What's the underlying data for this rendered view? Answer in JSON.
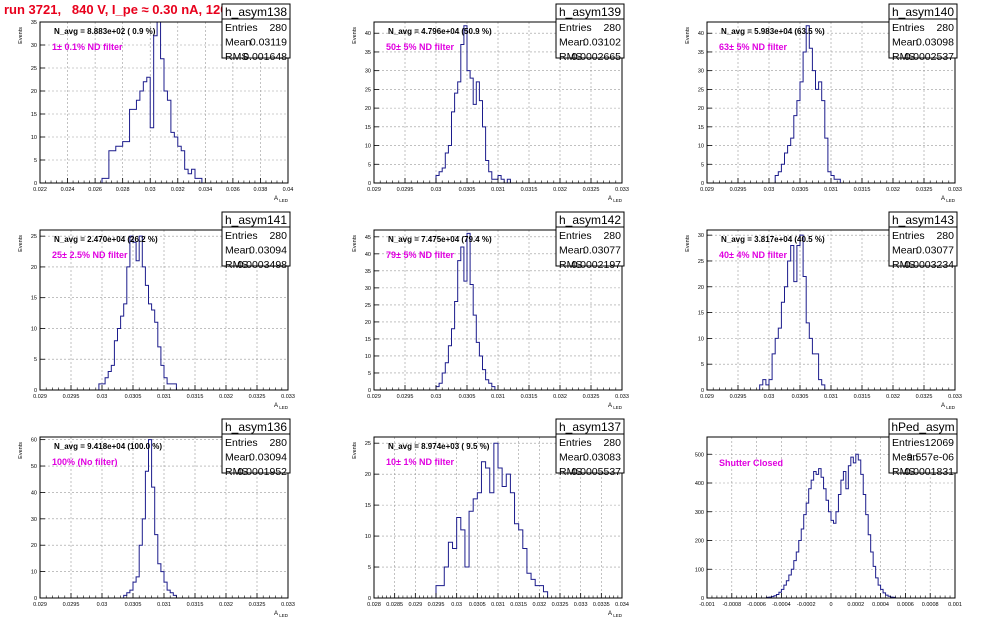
{
  "header": {
    "run_title": "run 3721,   840 V, I_pe ≈ 0.30 nA, 120 Hz"
  },
  "colors": {
    "histogram_line": "#1c1c8c",
    "annotation": "#e000e0",
    "run_title": "#e8001c",
    "grid": "#9a9a9a"
  },
  "stats_labels": {
    "entries": "Entries",
    "mean": "Mean",
    "rms": "RMS"
  },
  "chart_data": [
    {
      "type": "histogram",
      "name": "h_asym138",
      "ylabel": "Events",
      "xlabel": "A_LED",
      "navg": "N_avg = 8.883e+02 ( 0.9 %)",
      "filter": "1± 0.1% ND filter",
      "entries": "280",
      "mean": "0.03119",
      "rms": "0.001648",
      "xlim": [
        0.022,
        0.04
      ],
      "ylim": [
        0,
        35
      ],
      "grid": true,
      "xticks": [
        0.022,
        0.024,
        0.026,
        0.028,
        0.03,
        0.032,
        0.034,
        0.036,
        0.038,
        0.04
      ],
      "xtick_labels": [
        "0.022",
        "0.024",
        "0.026",
        "0.028",
        "0.03",
        "0.032",
        "0.034",
        "0.036",
        "0.038",
        "0.04"
      ],
      "yticks": [
        0,
        5,
        10,
        15,
        20,
        25,
        30,
        35
      ],
      "bin_start": 0.0265,
      "bin_width": 0.00025,
      "counts": [
        1,
        1,
        7,
        7,
        8,
        8,
        9,
        9,
        16,
        16,
        18,
        20,
        22,
        23,
        12,
        32,
        35,
        27,
        20,
        18,
        11,
        10,
        8,
        7,
        3,
        2,
        3,
        1,
        1
      ]
    },
    {
      "type": "histogram",
      "name": "h_asym139",
      "ylabel": "Events",
      "xlabel": "A_LED",
      "navg": "N_avg = 4.796e+04 (50.9 %)",
      "filter": "50± 5% ND filter",
      "entries": "280",
      "mean": "0.03102",
      "rms": "0.0002665",
      "xlim": [
        0.029,
        0.033
      ],
      "ylim": [
        0,
        43
      ],
      "grid": true,
      "xticks": [
        0.029,
        0.0295,
        0.03,
        0.0305,
        0.031,
        0.0315,
        0.032,
        0.0325,
        0.033
      ],
      "xtick_labels": [
        "0.029",
        "0.0295",
        "0.03",
        "0.0305",
        "0.031",
        "0.0315",
        "0.032",
        "0.0325",
        "0.033"
      ],
      "yticks": [
        0,
        5,
        10,
        15,
        20,
        25,
        30,
        35,
        40
      ],
      "bin_start": 0.03,
      "bin_width": 5e-05,
      "counts": [
        2,
        3,
        4,
        8,
        10,
        19,
        24,
        27,
        37,
        42,
        30,
        28,
        21,
        27,
        22,
        15,
        6,
        3,
        1,
        1,
        2,
        1,
        0,
        1
      ]
    },
    {
      "type": "histogram",
      "name": "h_asym140",
      "ylabel": "Events",
      "xlabel": "A_LED",
      "navg": "N_avg = 5.983e+04 (63.5 %)",
      "filter": "63± 5% ND filter",
      "entries": "280",
      "mean": "0.03098",
      "rms": "0.0002537",
      "xlim": [
        0.029,
        0.033
      ],
      "ylim": [
        0,
        43
      ],
      "grid": true,
      "xticks": [
        0.029,
        0.0295,
        0.03,
        0.0305,
        0.031,
        0.0315,
        0.032,
        0.0325,
        0.033
      ],
      "xtick_labels": [
        "0.029",
        "0.0295",
        "0.03",
        "0.0305",
        "0.031",
        "0.0315",
        "0.032",
        "0.0325",
        "0.033"
      ],
      "yticks": [
        0,
        5,
        10,
        15,
        20,
        25,
        30,
        35,
        40
      ],
      "bin_start": 0.0301,
      "bin_width": 5e-05,
      "counts": [
        2,
        3,
        5,
        8,
        10,
        12,
        18,
        22,
        27,
        35,
        42,
        36,
        30,
        25,
        27,
        22,
        12,
        3,
        2,
        1,
        1
      ]
    },
    {
      "type": "histogram",
      "name": "h_asym141",
      "ylabel": "Events",
      "xlabel": "A_LED",
      "navg": "N_avg = 2.470e+04 (26.2 %)",
      "filter": "25± 2.5% ND filter",
      "entries": "280",
      "mean": "0.03094",
      "rms": "0.0003498",
      "xlim": [
        0.029,
        0.033
      ],
      "ylim": [
        0,
        26
      ],
      "grid": true,
      "xticks": [
        0.029,
        0.0295,
        0.03,
        0.0305,
        0.031,
        0.0315,
        0.032,
        0.0325,
        0.033
      ],
      "xtick_labels": [
        "0.029",
        "0.0295",
        "0.03",
        "0.0305",
        "0.031",
        "0.0315",
        "0.032",
        "0.0325",
        "0.033"
      ],
      "yticks": [
        0,
        5,
        10,
        15,
        20,
        25
      ],
      "bin_start": 0.02995,
      "bin_width": 5e-05,
      "counts": [
        1,
        1,
        2,
        3,
        4,
        8,
        10,
        12,
        14,
        20,
        25,
        24,
        21,
        25,
        20,
        17,
        14,
        13,
        11,
        7,
        4,
        2,
        1,
        1,
        1
      ]
    },
    {
      "type": "histogram",
      "name": "h_asym142",
      "ylabel": "Events",
      "xlabel": "A_LED",
      "navg": "N_avg = 7.475e+04 (79.4 %)",
      "filter": "79± 5% ND filter",
      "entries": "280",
      "mean": "0.03077",
      "rms": "0.0002197",
      "xlim": [
        0.029,
        0.033
      ],
      "ylim": [
        0,
        47
      ],
      "grid": true,
      "xticks": [
        0.029,
        0.0295,
        0.03,
        0.0305,
        0.031,
        0.0315,
        0.032,
        0.0325,
        0.033
      ],
      "xtick_labels": [
        "0.029",
        "0.0295",
        "0.03",
        "0.0305",
        "0.031",
        "0.0315",
        "0.032",
        "0.0325",
        "0.033"
      ],
      "yticks": [
        0,
        5,
        10,
        15,
        20,
        25,
        30,
        35,
        40,
        45
      ],
      "bin_start": 0.03,
      "bin_width": 5e-05,
      "counts": [
        1,
        2,
        5,
        8,
        13,
        18,
        26,
        38,
        42,
        32,
        46,
        31,
        22,
        14,
        10,
        6,
        3,
        2,
        1
      ]
    },
    {
      "type": "histogram",
      "name": "h_asym143",
      "ylabel": "Events",
      "xlabel": "A_LED",
      "navg": "N_avg = 3.817e+04 (40.5 %)",
      "filter": "40± 4% ND filter",
      "entries": "280",
      "mean": "0.03077",
      "rms": "0.0003234",
      "xlim": [
        0.029,
        0.033
      ],
      "ylim": [
        0,
        31
      ],
      "grid": true,
      "xticks": [
        0.029,
        0.0295,
        0.03,
        0.0305,
        0.031,
        0.0315,
        0.032,
        0.0325,
        0.033
      ],
      "xtick_labels": [
        "0.029",
        "0.0295",
        "0.03",
        "0.0305",
        "0.031",
        "0.0315",
        "0.032",
        "0.0325",
        "0.033"
      ],
      "yticks": [
        0,
        5,
        10,
        15,
        20,
        25,
        30
      ],
      "bin_start": 0.02985,
      "bin_width": 5e-05,
      "counts": [
        1,
        2,
        1,
        2,
        7,
        10,
        12,
        17,
        20,
        25,
        28,
        21,
        28,
        30,
        22,
        13,
        10,
        7,
        7,
        2,
        1
      ]
    },
    {
      "type": "histogram",
      "name": "h_asym136",
      "ylabel": "Events",
      "xlabel": "A_LED",
      "navg": "N_avg = 9.418e+04 (100.0 %)",
      "filter": "100% (No filter)",
      "entries": "280",
      "mean": "0.03094",
      "rms": "0.0001952",
      "xlim": [
        0.029,
        0.033
      ],
      "ylim": [
        0,
        61
      ],
      "grid": true,
      "xticks": [
        0.029,
        0.0295,
        0.03,
        0.0305,
        0.031,
        0.0315,
        0.032,
        0.0325,
        0.033
      ],
      "xtick_labels": [
        "0.029",
        "0.0295",
        "0.03",
        "0.0305",
        "0.031",
        "0.0315",
        "0.032",
        "0.0325",
        "0.033"
      ],
      "yticks": [
        0,
        10,
        20,
        30,
        40,
        50,
        60
      ],
      "bin_start": 0.03035,
      "bin_width": 5e-05,
      "counts": [
        1,
        2,
        3,
        6,
        8,
        20,
        30,
        48,
        60,
        42,
        24,
        13,
        10,
        6,
        3,
        2,
        1
      ]
    },
    {
      "type": "histogram",
      "name": "h_asym137",
      "ylabel": "Events",
      "xlabel": "A_LED",
      "navg": "N_avg = 8.974e+03 ( 9.5 %)",
      "filter": "10± 1% ND filter",
      "entries": "280",
      "mean": "0.03083",
      "rms": "0.0005537",
      "xlim": [
        0.028,
        0.034
      ],
      "ylim": [
        0,
        26
      ],
      "grid": true,
      "xticks": [
        0.028,
        0.0285,
        0.029,
        0.0295,
        0.03,
        0.0305,
        0.031,
        0.0315,
        0.032,
        0.0325,
        0.033,
        0.0335,
        0.034
      ],
      "xtick_labels": [
        "0.028",
        "0.0285",
        "0.029",
        "0.0295",
        "0.03",
        "0.0305",
        "0.031",
        "0.0315",
        "0.032",
        "0.0325",
        "0.033",
        "0.0335",
        "0.034"
      ],
      "yticks": [
        0,
        5,
        10,
        15,
        20,
        25
      ],
      "bin_start": 0.0295,
      "bin_width": 0.0001,
      "counts": [
        2,
        2,
        5,
        9,
        8,
        13,
        11,
        5,
        14,
        16,
        17,
        22,
        21,
        17,
        25,
        21,
        18,
        20,
        17,
        12,
        11,
        8,
        4,
        3,
        2,
        2,
        1
      ]
    },
    {
      "type": "histogram",
      "name": "hPed_asym",
      "ylabel": "",
      "xlabel": "",
      "navg": "",
      "filter": "Shutter Closed",
      "entries": "12069",
      "mean": "9.557e-06",
      "rms": "0.0001831",
      "xlim": [
        -0.001,
        0.001
      ],
      "ylim": [
        0,
        560
      ],
      "grid": true,
      "xticks": [
        -0.001,
        -0.0008,
        -0.0006,
        -0.0004,
        -0.0002,
        0,
        0.0002,
        0.0004,
        0.0006,
        0.0008,
        0.001
      ],
      "xtick_labels": [
        "-0.001",
        "-0.0008",
        "-0.0006",
        "-0.0004",
        "-0.0002",
        "0",
        "0.0002",
        "0.0004",
        "0.0006",
        "0.0008",
        "0.001"
      ],
      "yticks": [
        0,
        100,
        200,
        300,
        400,
        500
      ],
      "bin_start": -0.00052,
      "bin_width": 2e-05,
      "counts": [
        2,
        3,
        5,
        8,
        12,
        20,
        30,
        45,
        60,
        80,
        100,
        130,
        160,
        200,
        240,
        290,
        330,
        380,
        410,
        440,
        430,
        450,
        420,
        380,
        340,
        300,
        270,
        260,
        300,
        360,
        410,
        440,
        380,
        460,
        490,
        470,
        500,
        480,
        430,
        360,
        290,
        220,
        160,
        110,
        70,
        45,
        30,
        18,
        10,
        6,
        3,
        2
      ]
    }
  ]
}
